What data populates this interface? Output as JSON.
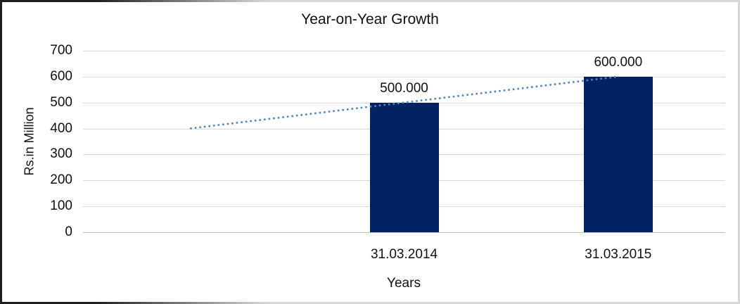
{
  "chart_data": {
    "type": "bar",
    "title": "Year-on-Year Growth",
    "xlabel": "Years",
    "ylabel": "Rs.in Million",
    "categories": [
      "31.03.2014",
      "31.03.2015"
    ],
    "series": [
      {
        "name": "Rs.in Million",
        "values": [
          500,
          600
        ],
        "data_labels": [
          "500.000",
          "600.000"
        ]
      }
    ],
    "trendline": {
      "style": "dotted",
      "description": "linear trend extending one category before first bar",
      "start_value": 400,
      "end_value": 600
    },
    "ylim": [
      0,
      700
    ],
    "ytick_interval": 100,
    "yticks": [
      0,
      100,
      200,
      300,
      400,
      500,
      600,
      700
    ],
    "grid": "horizontal",
    "legend": "none",
    "colors": {
      "bar": "#032263",
      "trendline": "#4e86c8",
      "gridline": "#d9d9d9",
      "axis_line": "#bfbfbf",
      "text": "#111111"
    }
  }
}
